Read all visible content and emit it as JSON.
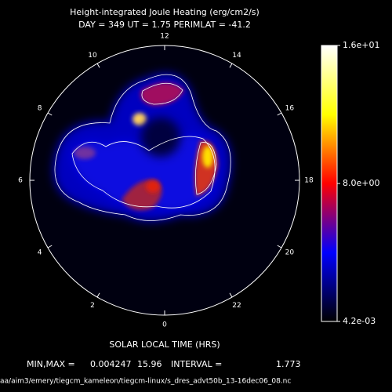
{
  "chart_data": {
    "type": "polar-heatmap",
    "title": "Height-integrated Joule Heating (erg/cm2/s)",
    "subtitle": "DAY = 349  UT =  1.75  PERIMLAT = -41.2",
    "xlabel": "SOLAR LOCAL TIME (HRS)",
    "thetalim": [
      0,
      24
    ],
    "thetaticks": [
      0,
      2,
      4,
      6,
      8,
      10,
      12,
      14,
      16,
      18,
      20,
      22
    ],
    "colorbar": {
      "lim": [
        0.0042,
        16
      ],
      "ticks": [
        {
          "value": 16,
          "label": "1.6e+01"
        },
        {
          "value": 8,
          "label": "8.0e+00"
        },
        {
          "value": 0.0042,
          "label": "4.2e-03"
        }
      ],
      "colors": [
        "#000000",
        "#0000ff",
        "#ff0000",
        "#ffff00",
        "#ffffff"
      ]
    },
    "stats": {
      "minmax_label": "MIN,MAX =",
      "min": 0.004247,
      "max": 15.96,
      "interval_label": "INTERVAL =",
      "interval": 1.773
    },
    "file": "aa/aim3/emery/tiegcm_kameleon/tiegcm-linux/s_dres_advt50b_13-16dec06_08.nc"
  }
}
